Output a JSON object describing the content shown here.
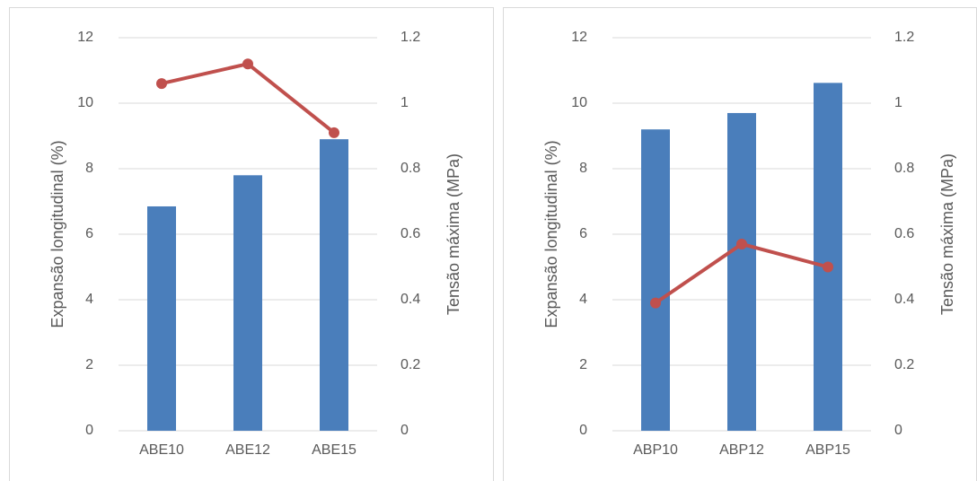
{
  "chart_data": [
    {
      "type": "bar_line",
      "categories": [
        "ABE10",
        "ABE12",
        "ABE15"
      ],
      "ylabel": "Expansão longitudinal (%)",
      "y2label": "Tensão máxima (MPa)",
      "ylim": [
        0,
        12
      ],
      "yticks": [
        0,
        2,
        4,
        6,
        8,
        10,
        12
      ],
      "y2lim": [
        0,
        1.2
      ],
      "y2ticks": [
        0,
        0.2,
        0.4,
        0.6,
        0.8,
        1,
        1.2
      ],
      "grid": true,
      "series": [
        {
          "color": "#4a7ebb",
          "values": [
            6.85,
            7.8,
            8.9
          ]
        },
        {
          "color": "#c0504d",
          "values": [
            1.06,
            1.12,
            0.91
          ],
          "axis": "y2"
        }
      ]
    },
    {
      "type": "bar_line",
      "categories": [
        "ABP10",
        "ABP12",
        "ABP15"
      ],
      "ylabel": "Expansão longitudinal (%)",
      "y2label": "Tensão máxima (MPa)",
      "ylim": [
        0,
        12
      ],
      "yticks": [
        0,
        2,
        4,
        6,
        8,
        10,
        12
      ],
      "y2lim": [
        0,
        1.2
      ],
      "y2ticks": [
        0,
        0.2,
        0.4,
        0.6,
        0.8,
        1,
        1.2
      ],
      "grid": true,
      "series": [
        {
          "color": "#4a7ebb",
          "values": [
            9.2,
            9.7,
            10.62
          ]
        },
        {
          "color": "#c0504d",
          "values": [
            0.39,
            0.57,
            0.5
          ],
          "axis": "y2"
        }
      ]
    }
  ]
}
